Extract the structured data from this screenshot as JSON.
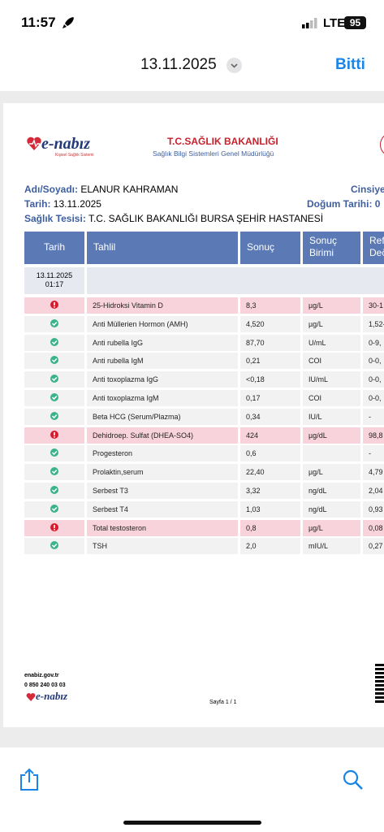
{
  "status_bar": {
    "time": "11:57",
    "network": "LTE",
    "battery": "95"
  },
  "nav": {
    "title": "13.11.2025",
    "done": "Bitti"
  },
  "document": {
    "logo": {
      "name": "e-nabız",
      "tagline": "Kişisel Sağlık Sistemi"
    },
    "ministry": {
      "title": "T.C.SAĞLIK BAKANLIĞI",
      "subtitle": "Sağlık Bilgi Sistemleri Genel Müdürlüğü"
    },
    "patient": {
      "name_label": "Adı/Soyadı:",
      "name": "ELANUR KAHRAMAN",
      "gender_label": "Cinsiye",
      "date_label": "Tarih:",
      "date": "13.11.2025",
      "birth_label": "Doğum Tarihi: 0",
      "facility_label": "Sağlık Tesisi:",
      "facility": "T.C. SAĞLIK BAKANLIĞI BURSA ŞEHİR HASTANESİ"
    },
    "table": {
      "headers": [
        "Tarih",
        "Tahlil",
        "Sonuç",
        "Sonuç Birimi",
        "Ref Deč"
      ],
      "date_row": {
        "date": "13.11.2025",
        "time": "01:17"
      },
      "rows": [
        {
          "abnormal": true,
          "test": "25-Hidroksi Vitamin D",
          "result": "8,3",
          "unit": "µg/L",
          "ref": "30-1"
        },
        {
          "abnormal": false,
          "test": "Anti Müllerien Hormon (AMH)",
          "result": "4,520",
          "unit": "µg/L",
          "ref": "1,52-"
        },
        {
          "abnormal": false,
          "test": "Anti rubella IgG",
          "result": "87,70",
          "unit": "U/mL",
          "ref": "0-9,"
        },
        {
          "abnormal": false,
          "test": "Anti rubella IgM",
          "result": "0,21",
          "unit": "COI",
          "ref": "0-0,"
        },
        {
          "abnormal": false,
          "test": "Anti toxoplazma IgG",
          "result": "<0,18",
          "unit": "IU/mL",
          "ref": "0-0,"
        },
        {
          "abnormal": false,
          "test": "Anti toxoplazma IgM",
          "result": "0,17",
          "unit": "COI",
          "ref": "0-0,"
        },
        {
          "abnormal": false,
          "test": "Beta HCG (Serum/Plazma)",
          "result": "0,34",
          "unit": "IU/L",
          "ref": "-"
        },
        {
          "abnormal": true,
          "test": "Dehidroep. Sulfat (DHEA-SO4)",
          "result": "424",
          "unit": "µg/dL",
          "ref": "98,8"
        },
        {
          "abnormal": false,
          "test": "Progesteron",
          "result": "0,6",
          "unit": null,
          "ref": "-"
        },
        {
          "abnormal": false,
          "test": "Prolaktin,serum",
          "result": "22,40",
          "unit": "µg/L",
          "ref": "4,79"
        },
        {
          "abnormal": false,
          "test": "Serbest T3",
          "result": "3,32",
          "unit": "ng/dL",
          "ref": "2,04"
        },
        {
          "abnormal": false,
          "test": "Serbest T4",
          "result": "1,03",
          "unit": "ng/dL",
          "ref": "0,93"
        },
        {
          "abnormal": true,
          "test": "Total testosteron",
          "result": "0,8",
          "unit": "µg/L",
          "ref": "0,08"
        },
        {
          "abnormal": false,
          "test": "TSH",
          "result": "2,0",
          "unit": "mIU/L",
          "ref": "0,27"
        }
      ]
    },
    "footer": {
      "site": "enabiz.gov.tr",
      "phone": "0 850 240 03 03",
      "page": "Sayfa 1 / 1"
    }
  }
}
